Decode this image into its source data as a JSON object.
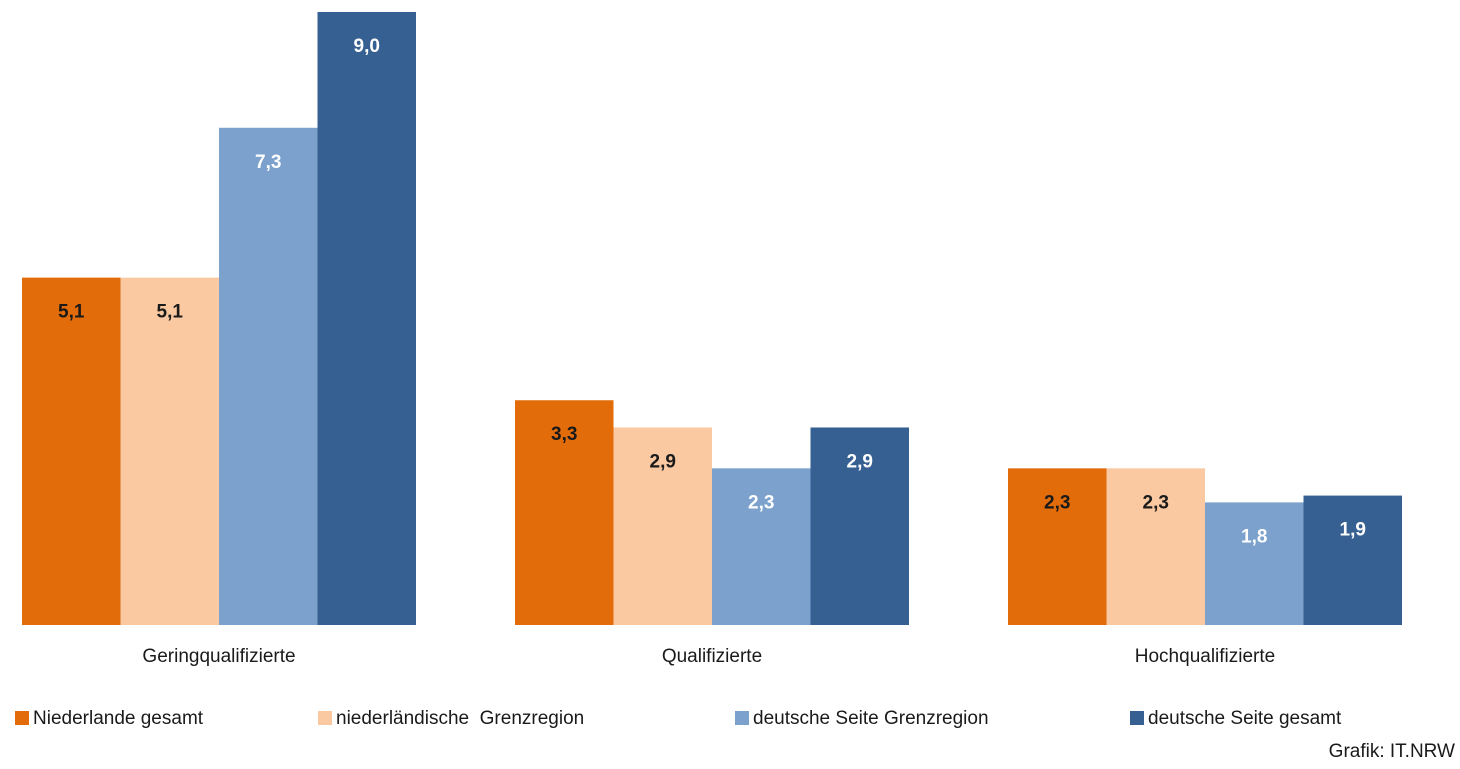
{
  "chart_data": {
    "type": "bar",
    "categories": [
      "Geringqualifizierte",
      "Qualifizierte",
      "Hochqualifizierte"
    ],
    "series": [
      {
        "name": "Niederlande gesamt",
        "color": "#e36c0a",
        "label_color": "#1a1a1a",
        "values": [
          5.1,
          3.3,
          2.3
        ],
        "value_labels": [
          "5,1",
          "3,3",
          "2,3"
        ]
      },
      {
        "name": "niederländische  Grenzregion",
        "color": "#fac9a1",
        "label_color": "#1a1a1a",
        "values": [
          5.1,
          2.9,
          2.3
        ],
        "value_labels": [
          "5,1",
          "2,9",
          "2,3"
        ]
      },
      {
        "name": "deutsche Seite Grenzregion",
        "color": "#7ba1cc",
        "label_color": "#ffffff",
        "values": [
          7.3,
          2.3,
          1.8
        ],
        "value_labels": [
          "7,3",
          "2,3",
          "1,8"
        ]
      },
      {
        "name": "deutsche Seite gesamt",
        "color": "#366092",
        "label_color": "#ffffff",
        "values": [
          9.0,
          2.9,
          1.9
        ],
        "value_labels": [
          "9,0",
          "2,9",
          "1,9"
        ]
      }
    ],
    "ylim": [
      0,
      9
    ],
    "source": "Grafik: IT.NRW"
  }
}
